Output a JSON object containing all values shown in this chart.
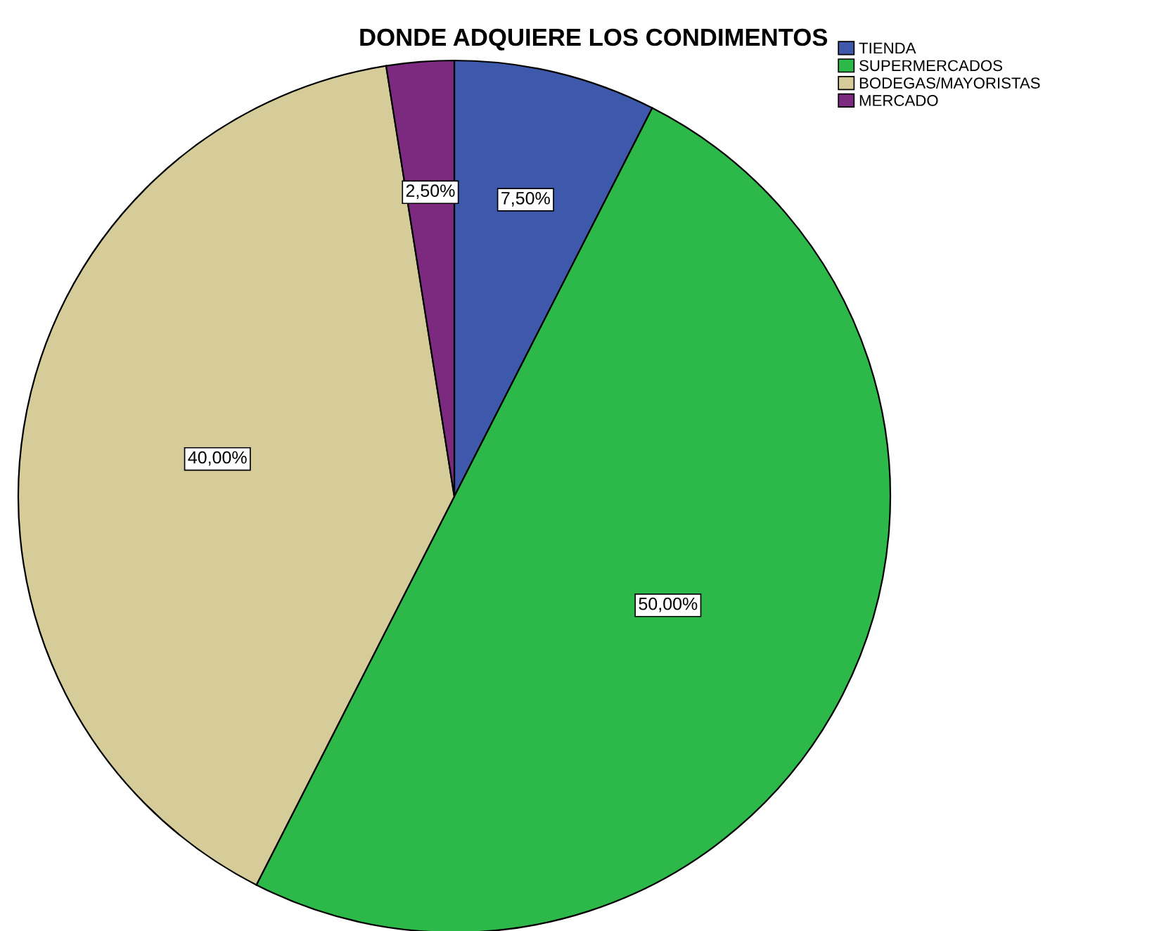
{
  "chart_data": {
    "type": "pie",
    "title": "DONDE ADQUIERE LOS CONDIMENTOS",
    "categories": [
      "TIENDA",
      "SUPERMERCADOS",
      "BODEGAS/MAYORISTAS",
      "MERCADO"
    ],
    "values": [
      7.5,
      50,
      40,
      2.5
    ],
    "colors": [
      "#3e58ac",
      "#2db84a",
      "#d5cc9a",
      "#7b2a7f"
    ],
    "value_labels": [
      "7,50%",
      "50,00%",
      "40,00%",
      "2,50%"
    ],
    "legend": "top right"
  }
}
